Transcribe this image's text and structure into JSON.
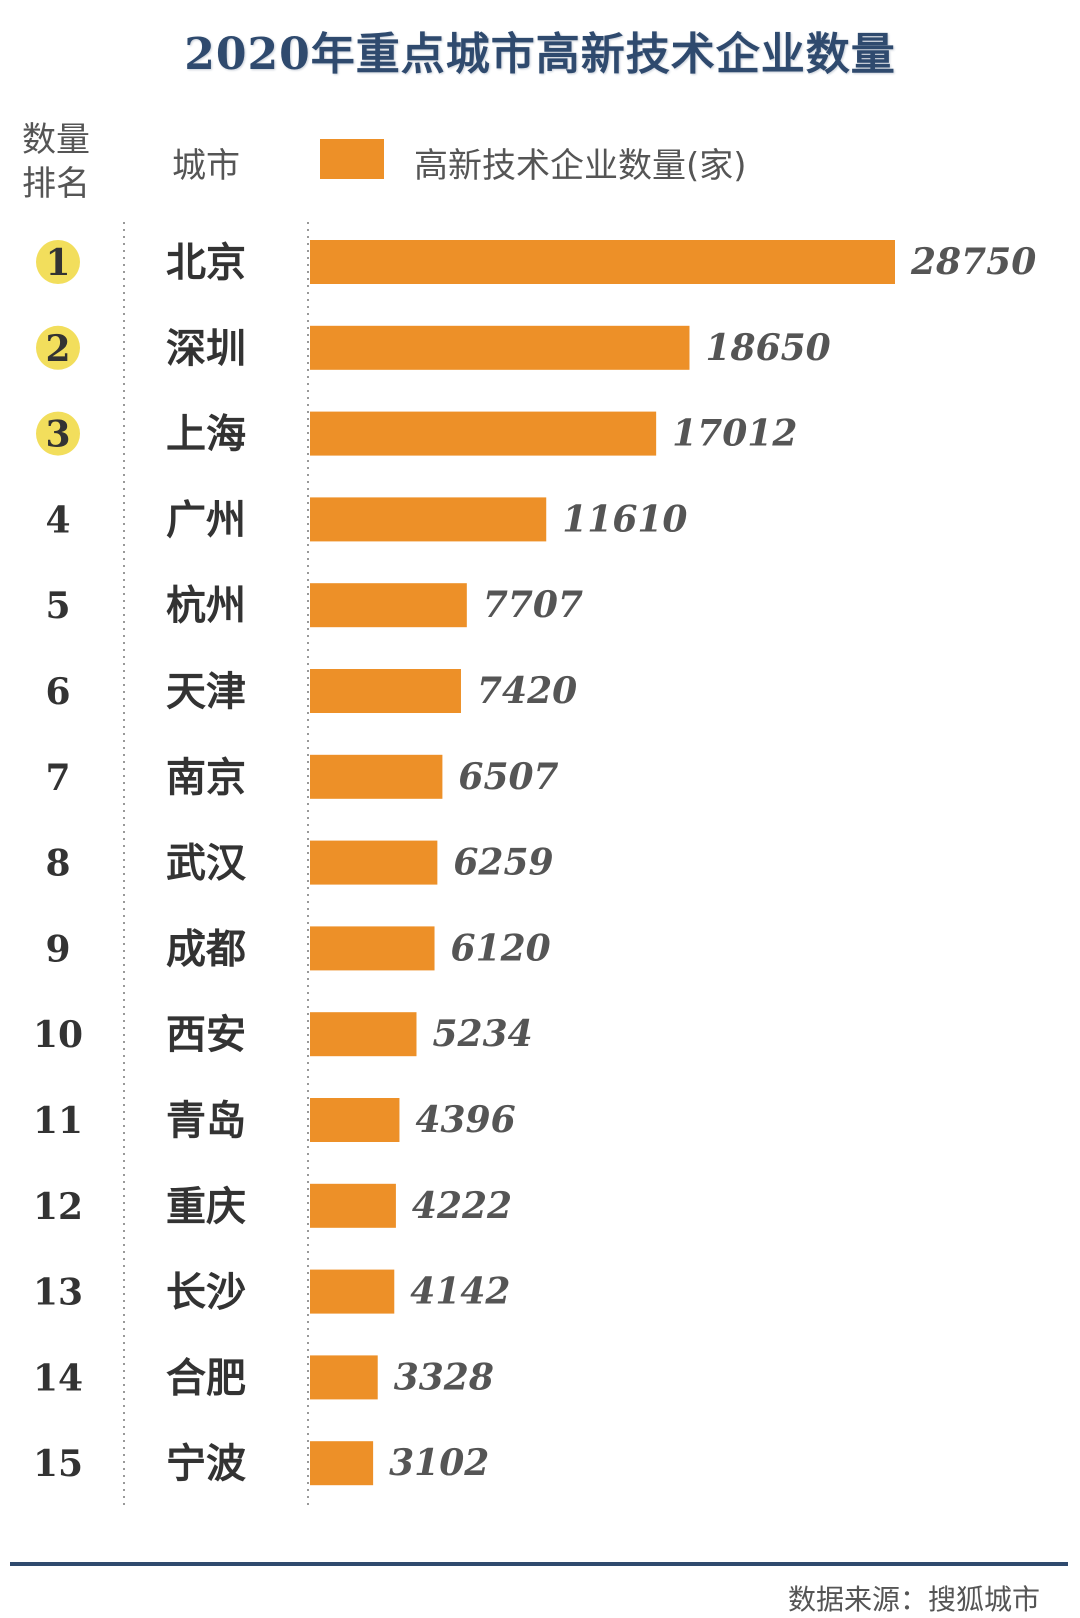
{
  "chart_data": {
    "type": "bar",
    "orientation": "horizontal",
    "title": "2020年重点城市高新技术企业数量",
    "rank_header": "数量排名",
    "category_header": "城市",
    "series": [
      {
        "name": "高新技术企业数量(家)",
        "color": "#ED9028"
      }
    ],
    "ranks": [
      "1",
      "2",
      "3",
      "4",
      "5",
      "6",
      "7",
      "8",
      "9",
      "10",
      "11",
      "12",
      "13",
      "14",
      "15"
    ],
    "top_ranks": [
      "1",
      "2",
      "3"
    ],
    "categories": [
      "北京",
      "深圳",
      "上海",
      "广州",
      "杭州",
      "天津",
      "南京",
      "武汉",
      "成都",
      "西安",
      "青岛",
      "重庆",
      "长沙",
      "合肥",
      "宁波"
    ],
    "values": [
      28750,
      18650,
      17012,
      11610,
      7707,
      7420,
      6507,
      6259,
      6120,
      5234,
      4396,
      4222,
      4142,
      3328,
      3102
    ],
    "highlight_category": "杭州",
    "highlight_color": "#ED9028",
    "rank_badge_color": "#F2DE5C",
    "xlim": [
      0,
      28750
    ],
    "legend_position": "top",
    "grid": false
  },
  "source": "数据来源：搜狐城市"
}
